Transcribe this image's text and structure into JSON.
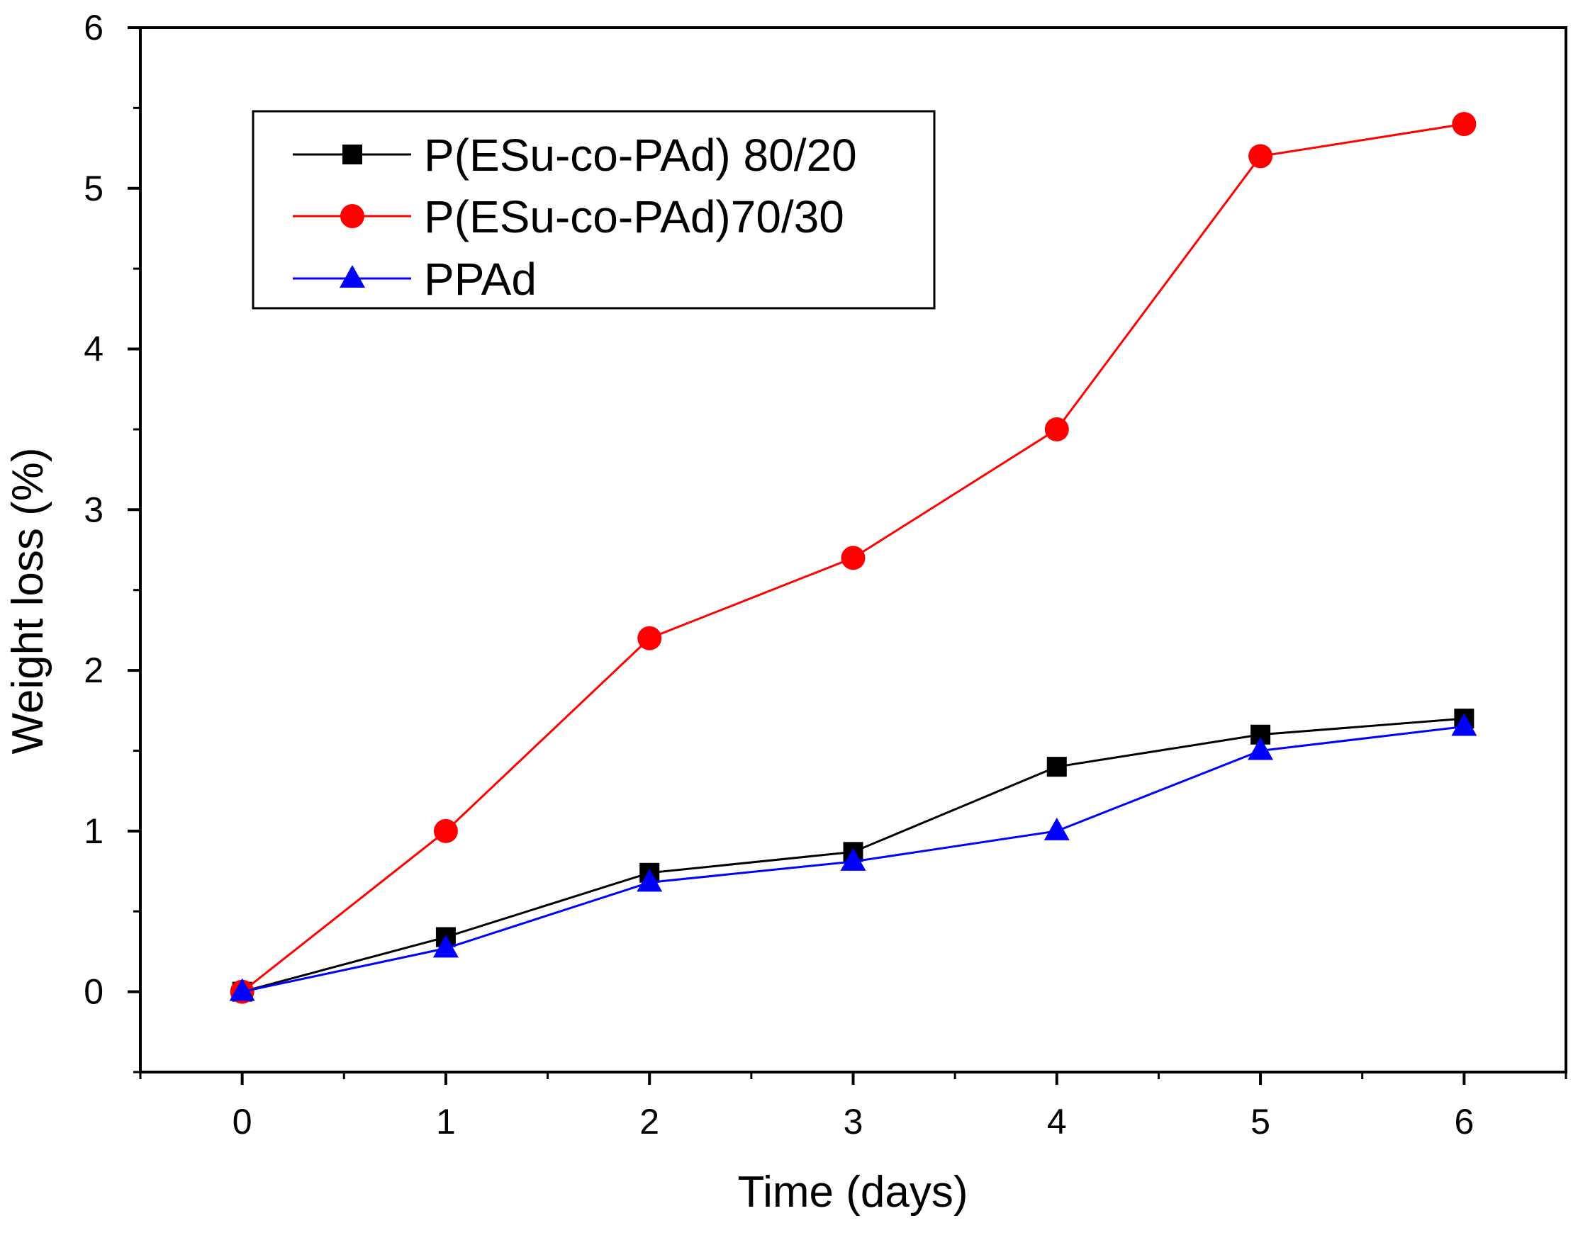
{
  "chart_data": {
    "type": "line",
    "title": "",
    "xlabel": "Time (days)",
    "ylabel": "Weight loss (%)",
    "xlim": [
      -0.5,
      6.5
    ],
    "ylim": [
      -0.5,
      6
    ],
    "xticks": [
      0,
      1,
      2,
      3,
      4,
      5,
      6
    ],
    "yticks": [
      0,
      1,
      2,
      3,
      4,
      5,
      6
    ],
    "grid": false,
    "legend_position": "top-left",
    "series": [
      {
        "name": "P(ESu-co-PAd) 80/20",
        "color": "#000000",
        "marker": "square",
        "x": [
          0,
          1,
          2,
          3,
          4,
          5,
          6
        ],
        "y": [
          0,
          0.34,
          0.74,
          0.87,
          1.4,
          1.6,
          1.7
        ]
      },
      {
        "name": "P(ESu-co-PAd)70/30",
        "color": "#ff0000",
        "marker": "circle",
        "x": [
          0,
          1,
          2,
          3,
          4,
          5,
          6
        ],
        "y": [
          0,
          1.0,
          2.2,
          2.7,
          3.5,
          5.2,
          5.4
        ]
      },
      {
        "name": "PPAd",
        "color": "#0000ff",
        "marker": "triangle",
        "x": [
          0,
          1,
          2,
          3,
          4,
          5,
          6
        ],
        "y": [
          0,
          0.27,
          0.68,
          0.81,
          1.0,
          1.5,
          1.65
        ]
      }
    ]
  }
}
